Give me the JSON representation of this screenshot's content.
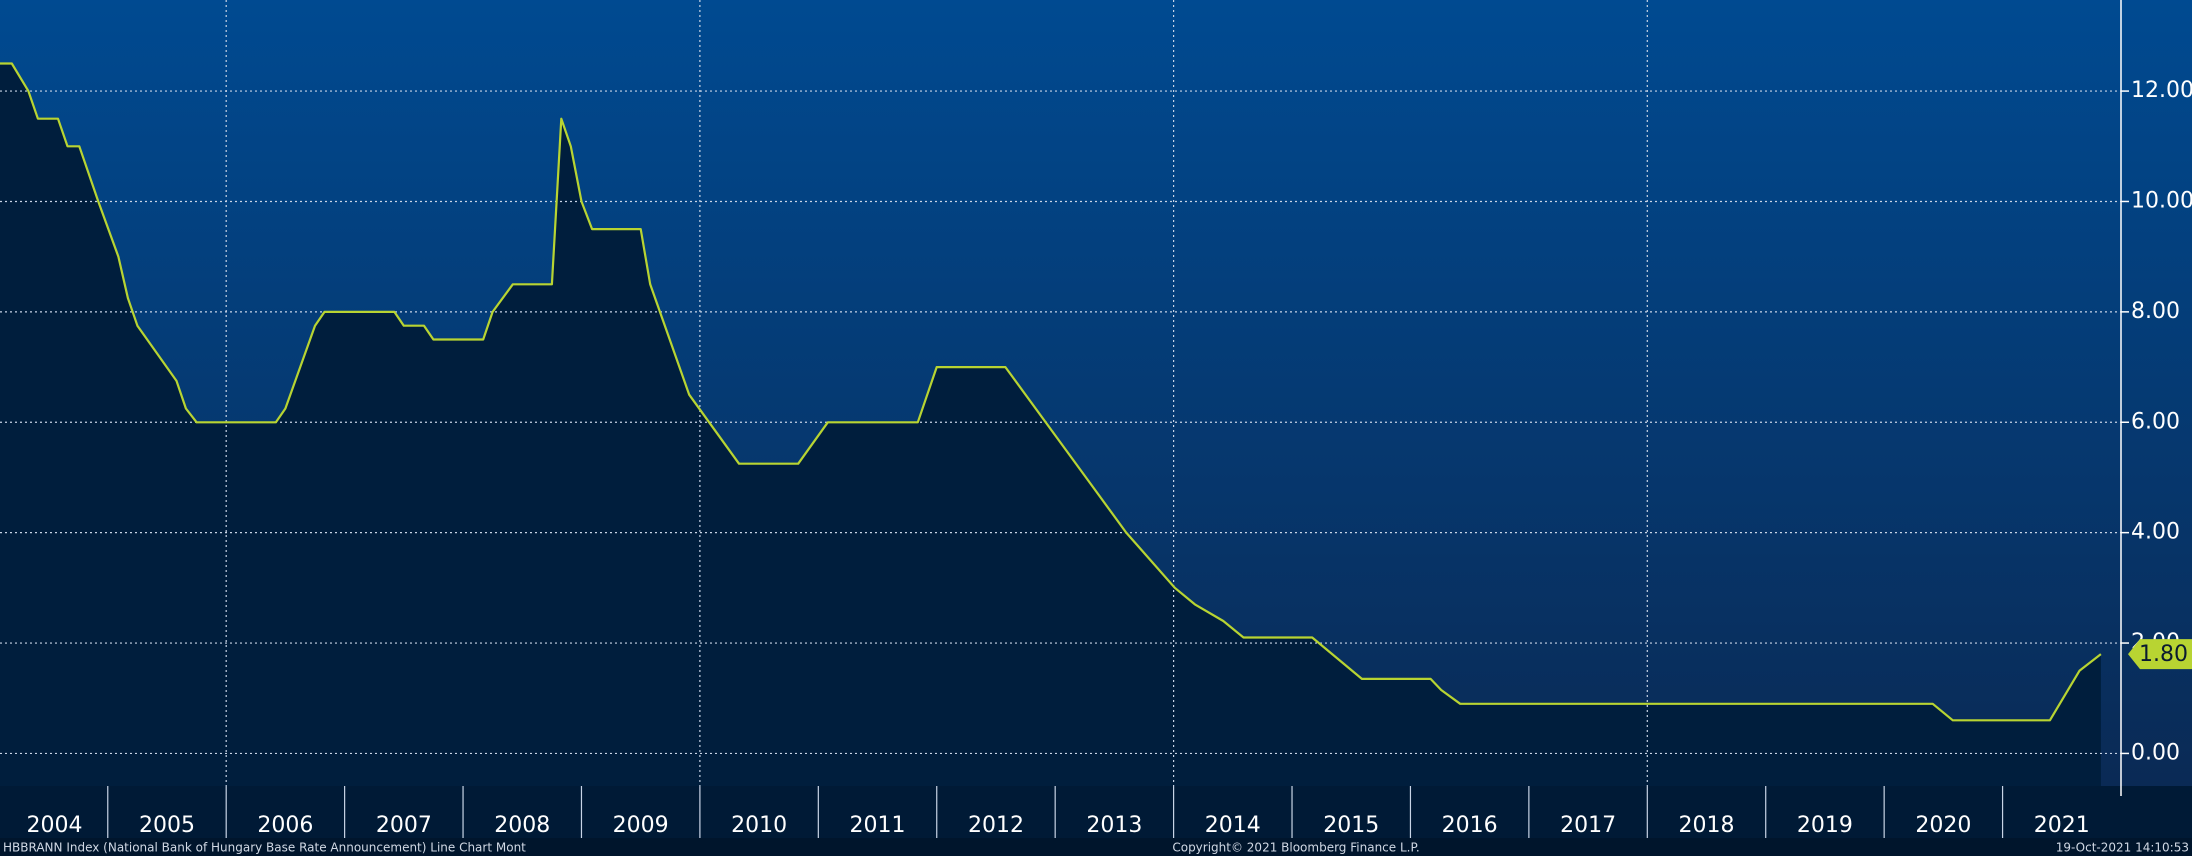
{
  "chart_data": {
    "type": "area",
    "series": [
      {
        "name": "HBBRANN Index",
        "color": "#b8d432",
        "fill": "#001e3d",
        "x": [
          2004.09,
          2004.19,
          2004.33,
          2004.41,
          2004.58,
          2004.66,
          2004.76,
          2004.92,
          2005.09,
          2005.17,
          2005.25,
          2005.58,
          2005.66,
          2005.75,
          2006.42,
          2006.5,
          2006.75,
          2006.83,
          2007.42,
          2007.5,
          2007.67,
          2007.75,
          2008.17,
          2008.25,
          2008.42,
          2008.75,
          2008.83,
          2008.91,
          2009.0,
          2009.09,
          2009.5,
          2009.58,
          2009.91,
          2010.33,
          2010.83,
          2011.08,
          2011.84,
          2012.0,
          2012.58,
          2013.26,
          2013.6,
          2014.01,
          2014.18,
          2014.42,
          2014.59,
          2015.17,
          2015.59,
          2016.17,
          2016.26,
          2016.42,
          2020.41,
          2020.58,
          2021.4,
          2021.65,
          2021.83
        ],
        "values": [
          12.5,
          12.5,
          12.0,
          11.5,
          11.5,
          11.0,
          11.0,
          10.0,
          9.0,
          8.25,
          7.75,
          6.75,
          6.25,
          6.0,
          6.0,
          6.25,
          7.75,
          8.0,
          8.0,
          7.75,
          7.75,
          7.5,
          7.5,
          8.0,
          8.5,
          8.5,
          11.5,
          11.0,
          10.0,
          9.5,
          9.5,
          8.5,
          6.5,
          5.25,
          5.25,
          6.0,
          6.0,
          7.0,
          7.0,
          5.0,
          4.0,
          3.0,
          2.7,
          2.4,
          2.1,
          2.1,
          1.35,
          1.35,
          1.15,
          0.9,
          0.9,
          0.6,
          0.6,
          1.5,
          1.8
        ],
        "value_labels": [
          null,
          null,
          null,
          null,
          null,
          null,
          null,
          null,
          null,
          null,
          null,
          null,
          null,
          null,
          null,
          null,
          null,
          null,
          null,
          null,
          null,
          null,
          null,
          null,
          null,
          null,
          null,
          null,
          null,
          null,
          null,
          null,
          null,
          null,
          null,
          null,
          null,
          null,
          null,
          null,
          null,
          null,
          null,
          null,
          null,
          null,
          null,
          null,
          null,
          null,
          null,
          null,
          null,
          null,
          "1.80"
        ]
      }
    ],
    "xlim": [
      2004.09,
      2022.0
    ],
    "xticks": [
      {
        "value": 2004,
        "label": "2004"
      },
      {
        "value": 2005,
        "label": "2005"
      },
      {
        "value": 2006,
        "label": "2006"
      },
      {
        "value": 2007,
        "label": "2007"
      },
      {
        "value": 2008,
        "label": "2008"
      },
      {
        "value": 2009,
        "label": "2009"
      },
      {
        "value": 2010,
        "label": "2010"
      },
      {
        "value": 2011,
        "label": "2011"
      },
      {
        "value": 2012,
        "label": "2012"
      },
      {
        "value": 2013,
        "label": "2013"
      },
      {
        "value": 2014,
        "label": "2014"
      },
      {
        "value": 2015,
        "label": "2015"
      },
      {
        "value": 2016,
        "label": "2016"
      },
      {
        "value": 2017,
        "label": "2017"
      },
      {
        "value": 2018,
        "label": "2018"
      },
      {
        "value": 2019,
        "label": "2019"
      },
      {
        "value": 2020,
        "label": "2020"
      },
      {
        "value": 2021,
        "label": "2021"
      }
    ],
    "xgrid": [
      2006,
      2010,
      2014,
      2018
    ],
    "ylim": [
      -0.59,
      13.65
    ],
    "yticks": [
      {
        "value": 0,
        "label": "0.00"
      },
      {
        "value": 2,
        "label": "2.00"
      },
      {
        "value": 4,
        "label": "4.00"
      },
      {
        "value": 6,
        "label": "6.00"
      },
      {
        "value": 8,
        "label": "8.00"
      },
      {
        "value": 10,
        "label": "10.00"
      },
      {
        "value": 12,
        "label": "12.00"
      }
    ],
    "grid": true,
    "footer": {
      "left": "HBBRANN Index (National Bank of Hungary Base Rate Announcement) Line Chart  Mont",
      "center": "Copyright© 2021 Bloomberg Finance L.P.",
      "right": "19-Oct-2021 14:10:53"
    }
  }
}
